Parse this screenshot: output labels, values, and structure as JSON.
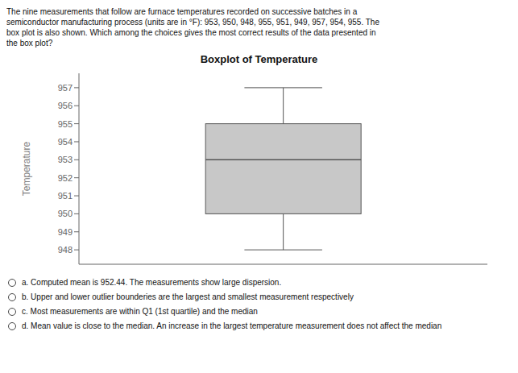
{
  "chart_data": {
    "type": "box",
    "title": "Boxplot of Temperature",
    "y_label": "Temperature",
    "boxes": [
      {
        "whisker_low": 948,
        "q1": 950,
        "median": 953,
        "q3": 955,
        "whisker_high": 957
      }
    ],
    "color": "#c8c8c8",
    "ylim": [
      947.2,
      957.8
    ],
    "yticks": [
      948,
      949,
      950,
      951,
      952,
      953,
      954,
      955,
      956,
      957
    ],
    "grid": false,
    "tick_labels": "y",
    "header": "The nine measurements that follow are furnace temperatures recorded on successive batches in a\nsemiconductor manufacturing process (units are in °F): 953, 950, 948, 955, 951, 949, 957, 954, 955. The\nbox plot is also shown. Which among the choices gives the most correct results of the data presented in\nthe box plot?",
    "annotations": [
      "a. Computed mean is 952.44. The measurements show large dispersion.",
      "b. Upper and lower outlier bounderies are the largest and smallest measurement respectively",
      "c. Most measurements are within Q1 (1st quartile) and the median",
      "d. Mean value is close to the median. An increase in the largest temperature measurement does not affect the median"
    ]
  }
}
